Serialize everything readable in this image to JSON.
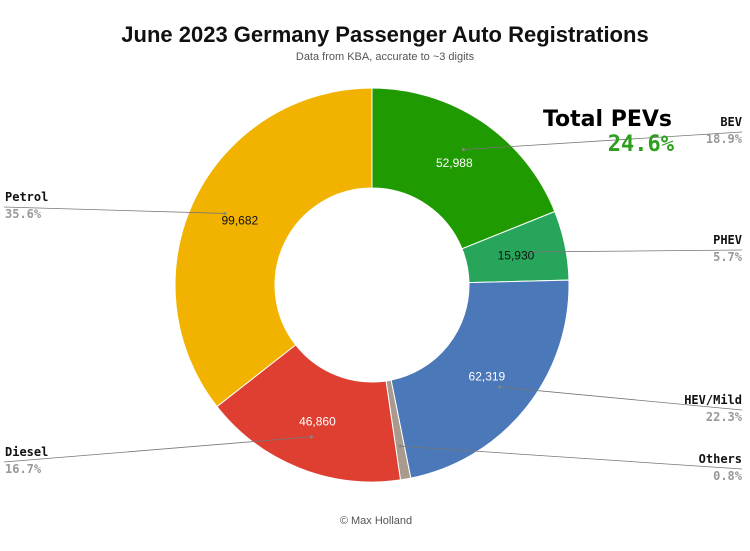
{
  "chart_data": {
    "type": "pie",
    "donut": true,
    "title": "June 2023 Germany Passenger Auto Registrations",
    "subtitle": "Data from KBA, accurate to ~3 digits",
    "credit": "© Max Holland",
    "annotation": {
      "label": "Total PEVs",
      "value": "24.6%",
      "color": "#2e9e1f"
    },
    "slices": [
      {
        "name": "BEV",
        "value": 52988,
        "value_label": "52,988",
        "percent_label": "18.9%",
        "color": "#1f9a00",
        "label_color": "#ffffff"
      },
      {
        "name": "PHEV",
        "value": 15930,
        "value_label": "15,930",
        "percent_label": "5.7%",
        "color": "#27a65b",
        "label_color": "#111111"
      },
      {
        "name": "HEV/Mild",
        "value": 62319,
        "value_label": "62,319",
        "percent_label": "22.3%",
        "color": "#4a78b8",
        "label_color": "#ffffff"
      },
      {
        "name": "Others",
        "value": 2360,
        "value_label": "",
        "percent_label": "0.8%",
        "color": "#a89a8c",
        "label_color": "#ffffff"
      },
      {
        "name": "Diesel",
        "value": 46860,
        "value_label": "46,860",
        "percent_label": "16.7%",
        "color": "#de3f31",
        "label_color": "#ffffff"
      },
      {
        "name": "Petrol",
        "value": 99682,
        "value_label": "99,682",
        "percent_label": "35.6%",
        "color": "#f2b300",
        "label_color": "#111111"
      }
    ]
  }
}
